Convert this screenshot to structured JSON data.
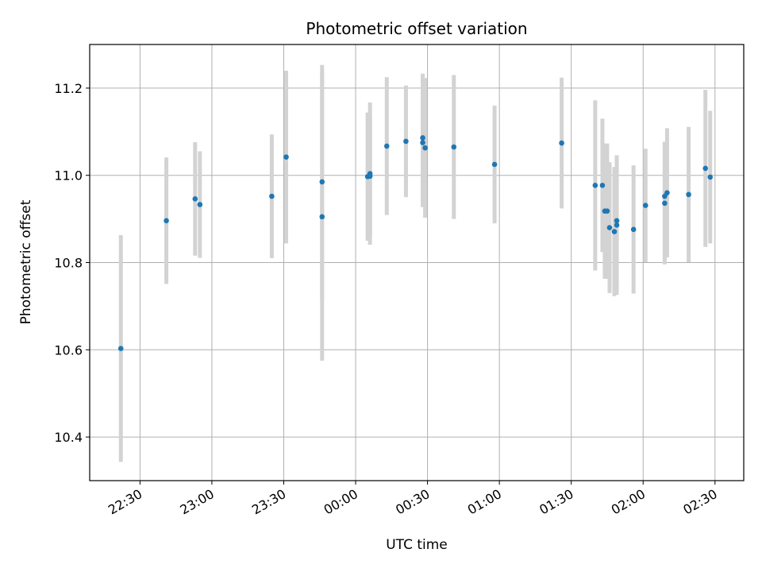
{
  "chart_data": {
    "type": "scatter",
    "title": "Photometric offset variation",
    "xlabel": "UTC time",
    "ylabel": "Photometric offset",
    "x_tick_labels": [
      "22:30",
      "23:00",
      "23:30",
      "00:00",
      "00:30",
      "01:00",
      "01:30",
      "02:00",
      "02:30"
    ],
    "y_ticks": [
      10.4,
      10.6,
      10.8,
      11.0,
      11.2
    ],
    "y_tick_labels": [
      "10.4",
      "10.6",
      "10.8",
      "11.0",
      "11.2"
    ],
    "xlim": [
      "22:09",
      "02:42"
    ],
    "ylim": [
      10.3,
      11.3
    ],
    "grid": true,
    "marker_color": "#1f77b4",
    "errorbar_color": "#d3d3d3",
    "series": [
      {
        "points": [
          {
            "x": "22:22",
            "y": 10.603,
            "err": 0.26
          },
          {
            "x": "22:41",
            "y": 10.896,
            "err": 0.145
          },
          {
            "x": "22:53",
            "y": 10.946,
            "err": 0.13
          },
          {
            "x": "22:55",
            "y": 10.933,
            "err": 0.122
          },
          {
            "x": "23:25",
            "y": 10.952,
            "err": 0.142
          },
          {
            "x": "23:31",
            "y": 11.042,
            "err": 0.198
          },
          {
            "x": "23:46",
            "y": 10.905,
            "err": 0.33
          },
          {
            "x": "23:46",
            "y": 10.985,
            "err": 0.268
          },
          {
            "x": "00:05",
            "y": 10.997,
            "err": 0.147
          },
          {
            "x": "00:06",
            "y": 10.998,
            "err": 0.135
          },
          {
            "x": "00:06",
            "y": 11.004,
            "err": 0.163
          },
          {
            "x": "00:13",
            "y": 11.067,
            "err": 0.158
          },
          {
            "x": "00:21",
            "y": 11.078,
            "err": 0.128
          },
          {
            "x": "00:28",
            "y": 11.086,
            "err": 0.147
          },
          {
            "x": "00:28",
            "y": 11.075,
            "err": 0.148
          },
          {
            "x": "00:29",
            "y": 11.063,
            "err": 0.16
          },
          {
            "x": "00:41",
            "y": 11.065,
            "err": 0.165
          },
          {
            "x": "00:58",
            "y": 11.025,
            "err": 0.135
          },
          {
            "x": "01:26",
            "y": 11.074,
            "err": 0.15
          },
          {
            "x": "01:40",
            "y": 10.977,
            "err": 0.195
          },
          {
            "x": "01:43",
            "y": 10.977,
            "err": 0.153
          },
          {
            "x": "01:44",
            "y": 10.918,
            "err": 0.155
          },
          {
            "x": "01:45",
            "y": 10.918,
            "err": 0.155
          },
          {
            "x": "01:46",
            "y": 10.88,
            "err": 0.15
          },
          {
            "x": "01:48",
            "y": 10.871,
            "err": 0.148
          },
          {
            "x": "01:49",
            "y": 10.896,
            "err": 0.15
          },
          {
            "x": "01:49",
            "y": 10.886,
            "err": 0.16
          },
          {
            "x": "01:56",
            "y": 10.876,
            "err": 0.147
          },
          {
            "x": "02:01",
            "y": 10.931,
            "err": 0.13
          },
          {
            "x": "02:09",
            "y": 10.936,
            "err": 0.14
          },
          {
            "x": "02:09",
            "y": 10.952,
            "err": 0.125
          },
          {
            "x": "02:10",
            "y": 10.96,
            "err": 0.148
          },
          {
            "x": "02:19",
            "y": 10.956,
            "err": 0.155
          },
          {
            "x": "02:26",
            "y": 11.016,
            "err": 0.18
          },
          {
            "x": "02:28",
            "y": 10.996,
            "err": 0.152
          }
        ]
      }
    ]
  }
}
